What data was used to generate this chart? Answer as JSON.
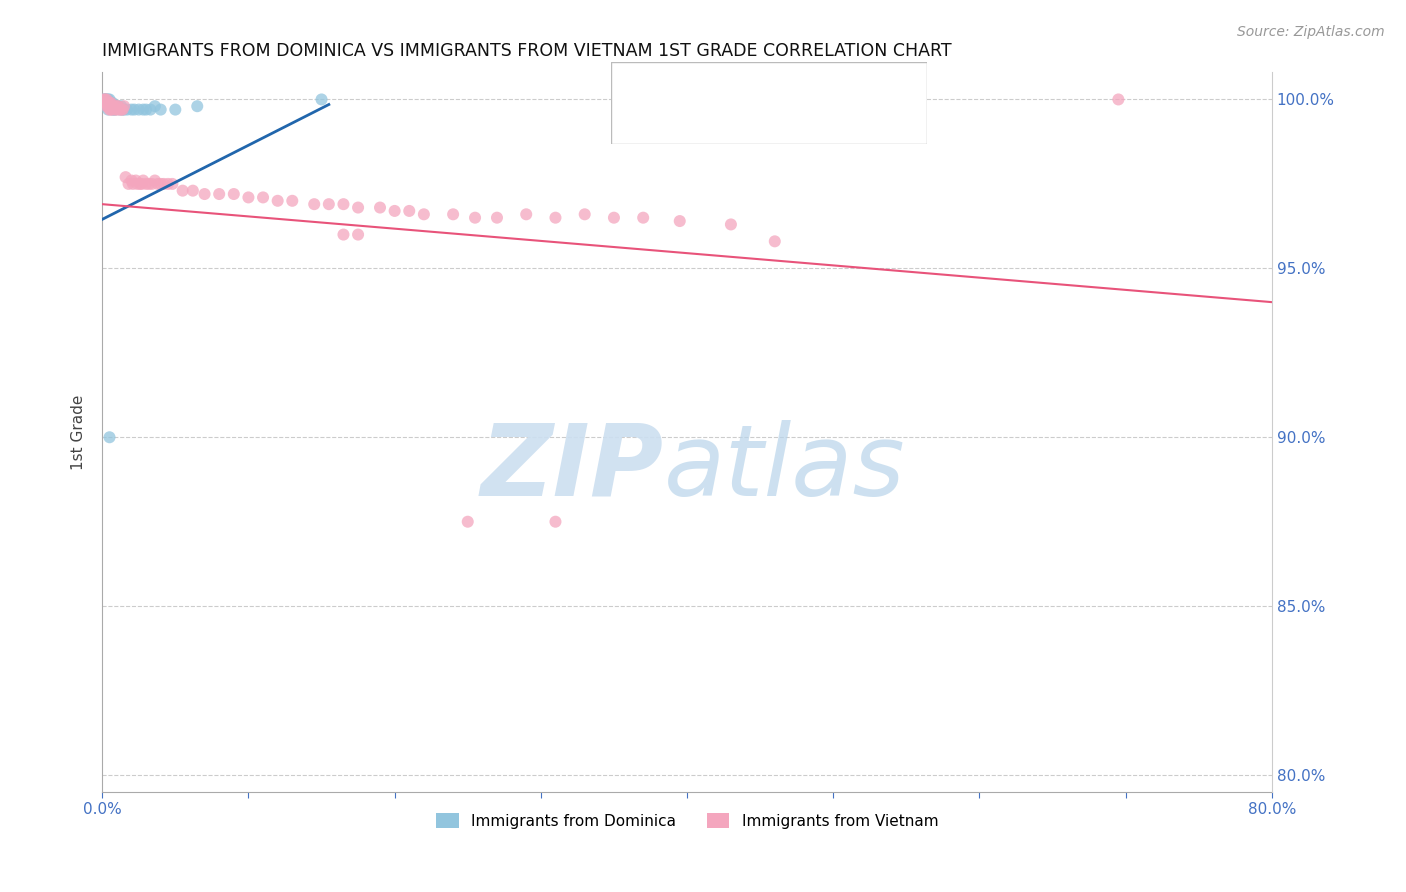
{
  "title": "IMMIGRANTS FROM DOMINICA VS IMMIGRANTS FROM VIETNAM 1ST GRADE CORRELATION CHART",
  "source": "Source: ZipAtlas.com",
  "ylabel": "1st Grade",
  "xlim": [
    0.0,
    0.8
  ],
  "ylim": [
    0.795,
    1.008
  ],
  "yticks": [
    0.8,
    0.85,
    0.9,
    0.95,
    1.0
  ],
  "ytick_labels": [
    "80.0%",
    "85.0%",
    "90.0%",
    "95.0%",
    "100.0%"
  ],
  "xticks": [
    0.0,
    0.1,
    0.2,
    0.3,
    0.4,
    0.5,
    0.6,
    0.7,
    0.8
  ],
  "xtick_labels": [
    "0.0%",
    "",
    "",
    "",
    "",
    "",
    "",
    "",
    "80.0%"
  ],
  "color_dominica": "#92c5de",
  "color_vietnam": "#f4a6be",
  "color_line_dominica": "#2166ac",
  "color_line_vietnam": "#e8537a",
  "color_axis_labels": "#4472C4",
  "dominica_points": [
    [
      0.001,
      1.0
    ],
    [
      0.002,
      1.0
    ],
    [
      0.002,
      1.0
    ],
    [
      0.002,
      0.999
    ],
    [
      0.003,
      1.0
    ],
    [
      0.003,
      0.999
    ],
    [
      0.003,
      0.999
    ],
    [
      0.003,
      0.998
    ],
    [
      0.004,
      1.0
    ],
    [
      0.004,
      0.999
    ],
    [
      0.004,
      0.998
    ],
    [
      0.004,
      0.997
    ],
    [
      0.005,
      1.0
    ],
    [
      0.005,
      0.999
    ],
    [
      0.005,
      0.998
    ],
    [
      0.005,
      0.998
    ],
    [
      0.006,
      0.999
    ],
    [
      0.006,
      0.998
    ],
    [
      0.006,
      0.998
    ],
    [
      0.007,
      0.999
    ],
    [
      0.007,
      0.998
    ],
    [
      0.007,
      0.997
    ],
    [
      0.008,
      0.998
    ],
    [
      0.008,
      0.997
    ],
    [
      0.009,
      0.998
    ],
    [
      0.009,
      0.997
    ],
    [
      0.01,
      0.998
    ],
    [
      0.011,
      0.998
    ],
    [
      0.012,
      0.997
    ],
    [
      0.013,
      0.998
    ],
    [
      0.014,
      0.997
    ],
    [
      0.015,
      0.997
    ],
    [
      0.017,
      0.997
    ],
    [
      0.02,
      0.997
    ],
    [
      0.022,
      0.997
    ],
    [
      0.025,
      0.997
    ],
    [
      0.028,
      0.997
    ],
    [
      0.03,
      0.997
    ],
    [
      0.033,
      0.997
    ],
    [
      0.036,
      0.998
    ],
    [
      0.04,
      0.997
    ],
    [
      0.05,
      0.997
    ],
    [
      0.065,
      0.998
    ],
    [
      0.005,
      0.9
    ],
    [
      0.15,
      1.0
    ]
  ],
  "vietnam_points": [
    [
      0.001,
      1.0
    ],
    [
      0.002,
      1.0
    ],
    [
      0.002,
      0.999
    ],
    [
      0.003,
      1.0
    ],
    [
      0.003,
      0.999
    ],
    [
      0.003,
      0.998
    ],
    [
      0.004,
      0.999
    ],
    [
      0.004,
      0.998
    ],
    [
      0.005,
      0.999
    ],
    [
      0.005,
      0.998
    ],
    [
      0.005,
      0.997
    ],
    [
      0.006,
      0.999
    ],
    [
      0.006,
      0.997
    ],
    [
      0.007,
      0.998
    ],
    [
      0.007,
      0.997
    ],
    [
      0.008,
      0.998
    ],
    [
      0.009,
      0.997
    ],
    [
      0.01,
      0.998
    ],
    [
      0.01,
      0.997
    ],
    [
      0.011,
      0.998
    ],
    [
      0.012,
      0.997
    ],
    [
      0.013,
      0.997
    ],
    [
      0.014,
      0.997
    ],
    [
      0.015,
      0.998
    ],
    [
      0.016,
      0.977
    ],
    [
      0.018,
      0.975
    ],
    [
      0.02,
      0.976
    ],
    [
      0.021,
      0.975
    ],
    [
      0.023,
      0.976
    ],
    [
      0.024,
      0.975
    ],
    [
      0.026,
      0.975
    ],
    [
      0.027,
      0.975
    ],
    [
      0.028,
      0.976
    ],
    [
      0.03,
      0.975
    ],
    [
      0.032,
      0.975
    ],
    [
      0.034,
      0.975
    ],
    [
      0.036,
      0.976
    ],
    [
      0.038,
      0.975
    ],
    [
      0.04,
      0.975
    ],
    [
      0.042,
      0.975
    ],
    [
      0.045,
      0.975
    ],
    [
      0.048,
      0.975
    ],
    [
      0.055,
      0.973
    ],
    [
      0.062,
      0.973
    ],
    [
      0.07,
      0.972
    ],
    [
      0.08,
      0.972
    ],
    [
      0.09,
      0.972
    ],
    [
      0.1,
      0.971
    ],
    [
      0.11,
      0.971
    ],
    [
      0.12,
      0.97
    ],
    [
      0.13,
      0.97
    ],
    [
      0.145,
      0.969
    ],
    [
      0.155,
      0.969
    ],
    [
      0.165,
      0.969
    ],
    [
      0.175,
      0.968
    ],
    [
      0.19,
      0.968
    ],
    [
      0.2,
      0.967
    ],
    [
      0.21,
      0.967
    ],
    [
      0.22,
      0.966
    ],
    [
      0.24,
      0.966
    ],
    [
      0.255,
      0.965
    ],
    [
      0.27,
      0.965
    ],
    [
      0.29,
      0.966
    ],
    [
      0.31,
      0.965
    ],
    [
      0.33,
      0.966
    ],
    [
      0.35,
      0.965
    ],
    [
      0.37,
      0.965
    ],
    [
      0.395,
      0.964
    ],
    [
      0.43,
      0.963
    ],
    [
      0.165,
      0.96
    ],
    [
      0.175,
      0.96
    ],
    [
      0.25,
      0.875
    ],
    [
      0.31,
      0.875
    ],
    [
      0.46,
      0.958
    ],
    [
      0.695,
      1.0
    ]
  ],
  "dom_trend": [
    0.0,
    0.155,
    0.9645,
    0.9985
  ],
  "viet_trend": [
    0.0,
    0.8,
    0.969,
    0.94
  ]
}
